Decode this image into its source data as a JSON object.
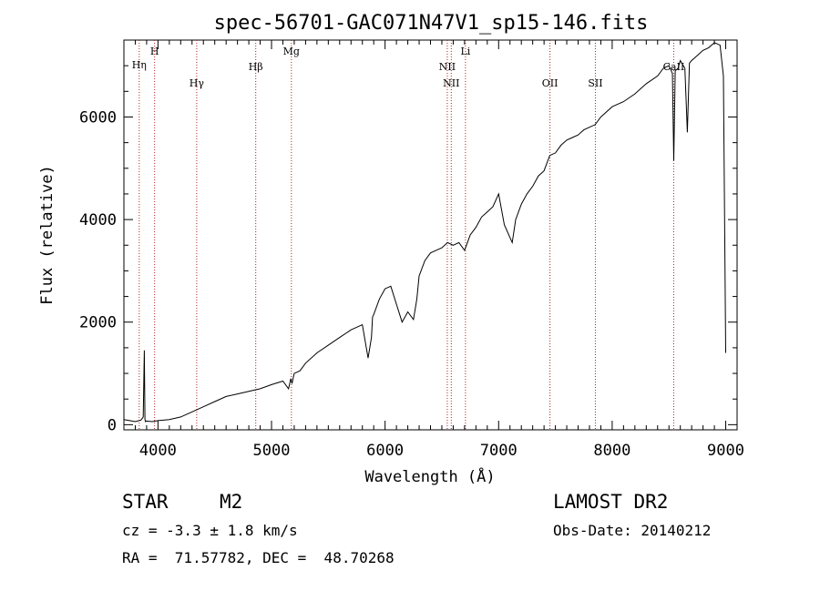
{
  "chart_data": {
    "type": "line",
    "title": "spec-56701-GAC071N47V1_sp15-146.fits",
    "xlabel": "Wavelength (Å)",
    "ylabel": "Flux (relative)",
    "xlim": [
      3700,
      9100
    ],
    "ylim": [
      -100,
      7500
    ],
    "xticks": [
      4000,
      5000,
      6000,
      7000,
      8000,
      9000
    ],
    "yticks": [
      0,
      2000,
      4000,
      6000
    ],
    "grid": false,
    "series": [
      {
        "x": [
          3700,
          3750,
          3800,
          3850,
          3870,
          3880,
          3885,
          3890,
          3900,
          3950,
          4000,
          4100,
          4200,
          4300,
          4400,
          4500,
          4600,
          4700,
          4800,
          4900,
          5000,
          5100,
          5150,
          5170,
          5180,
          5200,
          5250,
          5300,
          5400,
          5500,
          5600,
          5700,
          5800,
          5850,
          5880,
          5890,
          5900,
          5950,
          6000,
          6050,
          6100,
          6150,
          6200,
          6250,
          6280,
          6300,
          6350,
          6400,
          6450,
          6500,
          6550,
          6600,
          6650,
          6700,
          6750,
          6800,
          6850,
          6900,
          6950,
          7000,
          7050,
          7100,
          7120,
          7150,
          7200,
          7250,
          7300,
          7350,
          7400,
          7450,
          7500,
          7550,
          7600,
          7650,
          7700,
          7750,
          7800,
          7850,
          7900,
          8000,
          8100,
          8200,
          8300,
          8400,
          8450,
          8500,
          8530,
          8542,
          8555,
          8580,
          8600,
          8640,
          8662,
          8680,
          8700,
          8750,
          8800,
          8850,
          8900,
          8950,
          8980,
          9000
        ],
        "y": [
          100,
          80,
          60,
          90,
          150,
          1450,
          100,
          60,
          70,
          60,
          80,
          100,
          150,
          250,
          350,
          450,
          550,
          600,
          650,
          700,
          780,
          850,
          700,
          900,
          800,
          1000,
          1050,
          1200,
          1400,
          1550,
          1700,
          1850,
          1950,
          1300,
          1700,
          2100,
          2150,
          2450,
          2650,
          2700,
          2350,
          2000,
          2200,
          2050,
          2450,
          2900,
          3200,
          3350,
          3400,
          3450,
          3550,
          3500,
          3550,
          3400,
          3700,
          3850,
          4050,
          4150,
          4250,
          4500,
          3900,
          3650,
          3550,
          4000,
          4300,
          4500,
          4650,
          4850,
          4950,
          5250,
          5300,
          5450,
          5550,
          5600,
          5650,
          5750,
          5800,
          5850,
          6000,
          6200,
          6300,
          6450,
          6650,
          6800,
          6950,
          7000,
          6850,
          5150,
          6900,
          6950,
          7100,
          6950,
          5700,
          7050,
          7100,
          7200,
          7300,
          7350,
          7450,
          7400,
          6800,
          1400
        ]
      }
    ],
    "lines": [
      {
        "label": "Hη",
        "x": 3835
      },
      {
        "label": "H",
        "x": 3970
      },
      {
        "label": "Hγ",
        "x": 4341
      },
      {
        "label": "Hβ",
        "x": 4861
      },
      {
        "label": "Mg",
        "x": 5175
      },
      {
        "label": "NII",
        "x": 6548
      },
      {
        "label": "NII",
        "x": 6583
      },
      {
        "label": "Li",
        "x": 6708
      },
      {
        "label": "OII",
        "x": 7452
      },
      {
        "label": "SII",
        "x": 7852
      },
      {
        "label": "CaII",
        "x": 8542
      }
    ]
  },
  "info": {
    "class": "STAR",
    "subclass": "M2",
    "survey": "LAMOST DR2",
    "cz": "cz = -3.3 ± 1.8 km/s",
    "obs_date": "Obs-Date: 20140212",
    "radec": "RA =  71.57782, DEC =  48.70268"
  },
  "colors": {
    "axis": "#000000",
    "spectrum": "#000000",
    "lines": "#b22222",
    "background": "#ffffff"
  }
}
